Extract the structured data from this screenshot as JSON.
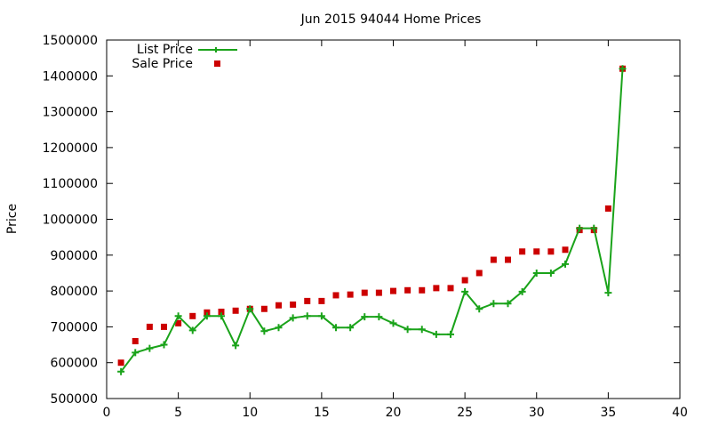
{
  "chart_data": {
    "type": "line",
    "title": "Jun 2015 94044 Home Prices",
    "xlabel": "",
    "ylabel": "Price",
    "xlim": [
      0,
      40
    ],
    "ylim": [
      500000,
      1500000
    ],
    "x_ticks": [
      "0",
      "5",
      "10",
      "15",
      "20",
      "25",
      "30",
      "35",
      "40"
    ],
    "y_ticks": [
      "500000",
      "600000",
      "700000",
      "800000",
      "900000",
      "1000000",
      "1100000",
      "1200000",
      "1300000",
      "1400000",
      "1500000"
    ],
    "grid": false,
    "legend_position": "top-left",
    "series": [
      {
        "name": "List Price",
        "style": "line with plus markers",
        "color": "#1aa31a",
        "x": [
          1,
          2,
          3,
          4,
          5,
          6,
          7,
          8,
          9,
          10,
          11,
          12,
          13,
          14,
          15,
          16,
          17,
          18,
          19,
          20,
          21,
          22,
          23,
          24,
          25,
          26,
          27,
          28,
          29,
          30,
          31,
          32,
          33,
          34,
          35,
          36
        ],
        "values": [
          575000,
          628000,
          640000,
          650000,
          730000,
          690000,
          730000,
          730000,
          648000,
          750000,
          688000,
          698000,
          725000,
          730000,
          730000,
          698000,
          698000,
          728000,
          728000,
          710000,
          693000,
          693000,
          679000,
          679000,
          798000,
          750000,
          765000,
          765000,
          798000,
          850000,
          850000,
          875000,
          975000,
          975000,
          795000,
          1420000
        ]
      },
      {
        "name": "Sale Price",
        "style": "square markers",
        "color": "#cc0000",
        "x": [
          1,
          2,
          3,
          4,
          5,
          6,
          7,
          8,
          9,
          10,
          11,
          12,
          13,
          14,
          15,
          16,
          17,
          18,
          19,
          20,
          21,
          22,
          23,
          24,
          25,
          26,
          27,
          28,
          29,
          30,
          31,
          32,
          33,
          34,
          35,
          36
        ],
        "values": [
          600000,
          660000,
          700000,
          700000,
          710000,
          730000,
          740000,
          742000,
          745000,
          750000,
          750000,
          760000,
          762000,
          772000,
          772000,
          788000,
          790000,
          795000,
          795000,
          800000,
          802000,
          802000,
          808000,
          808000,
          830000,
          850000,
          887000,
          887000,
          910000,
          910000,
          910000,
          915000,
          970000,
          970000,
          1030000,
          1420000
        ]
      }
    ]
  }
}
